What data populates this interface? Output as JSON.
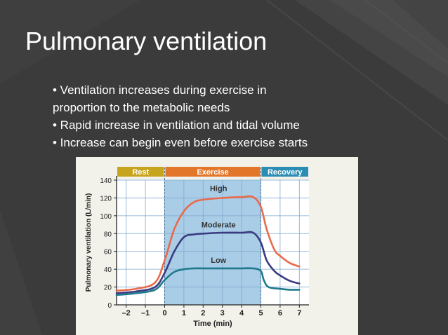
{
  "slide": {
    "title": "Pulmonary ventilation",
    "bullets": [
      [
        "• Ventilation increases during exercise in",
        "proportion to the metabolic needs"
      ],
      [
        "• Rapid increase in ventilation and tidal volume"
      ],
      [
        "• Increase can begin even before exercise starts"
      ]
    ]
  },
  "colors": {
    "slide_background": "#3b3b3b",
    "rest_band": "#c7a41d",
    "exercise_band": "#e2762b",
    "recovery_band": "#2b8db3",
    "exercise_shading": "#a9cde7",
    "high": "#e86a4a",
    "moderate": "#3b3b80",
    "low": "#1f7a8c"
  },
  "chart_data": {
    "type": "line",
    "title": "",
    "xlabel": "Time (min)",
    "ylabel": "Pulmonary ventilation (L/min)",
    "xlim": [
      -2.5,
      7.5
    ],
    "ylim": [
      0,
      140
    ],
    "xticks": [
      -2,
      -1,
      0,
      1,
      2,
      3,
      4,
      5,
      6,
      7
    ],
    "xtick_labels": [
      "–2",
      "–1",
      "0",
      "1",
      "2",
      "3",
      "4",
      "5",
      "6",
      "7"
    ],
    "yticks": [
      0,
      20,
      40,
      60,
      80,
      100,
      120,
      140
    ],
    "grid": true,
    "phases": [
      {
        "label": "Rest",
        "start": -2.5,
        "end": 0,
        "color": "#c7a41d"
      },
      {
        "label": "Exercise",
        "start": 0,
        "end": 5,
        "color": "#e2762b"
      },
      {
        "label": "Recovery",
        "start": 5,
        "end": 7.5,
        "color": "#2b8db3"
      }
    ],
    "series": [
      {
        "name": "High",
        "color": "#e86a4a",
        "x": [
          -2.5,
          -1.5,
          -0.5,
          0,
          0.5,
          1,
          1.5,
          2,
          3,
          4,
          4.6,
          5,
          5.3,
          5.7,
          6,
          6.5,
          7
        ],
        "y": [
          16,
          18,
          25,
          50,
          85,
          105,
          115,
          118,
          120,
          121,
          121,
          110,
          85,
          62,
          55,
          47,
          43
        ]
      },
      {
        "name": "Moderate",
        "color": "#3b3b80",
        "x": [
          -2.5,
          -1.5,
          -0.5,
          0,
          0.5,
          1,
          1.5,
          2,
          3,
          4,
          4.6,
          5,
          5.3,
          5.7,
          6,
          6.5,
          7
        ],
        "y": [
          13,
          15,
          20,
          36,
          60,
          76,
          79,
          80,
          81,
          81,
          81,
          70,
          50,
          38,
          33,
          27,
          24
        ]
      },
      {
        "name": "Low",
        "color": "#1f7a8c",
        "x": [
          -2.5,
          -1.5,
          -0.5,
          0,
          0.5,
          1,
          1.5,
          2,
          3,
          4,
          4.6,
          5,
          5.15,
          5.4,
          6,
          6.5,
          7
        ],
        "y": [
          11,
          13,
          17,
          28,
          37,
          40,
          41,
          41,
          41,
          41,
          41,
          38,
          28,
          20,
          18,
          17,
          17
        ]
      }
    ],
    "annotations": [
      "High",
      "Moderate",
      "Low"
    ]
  }
}
